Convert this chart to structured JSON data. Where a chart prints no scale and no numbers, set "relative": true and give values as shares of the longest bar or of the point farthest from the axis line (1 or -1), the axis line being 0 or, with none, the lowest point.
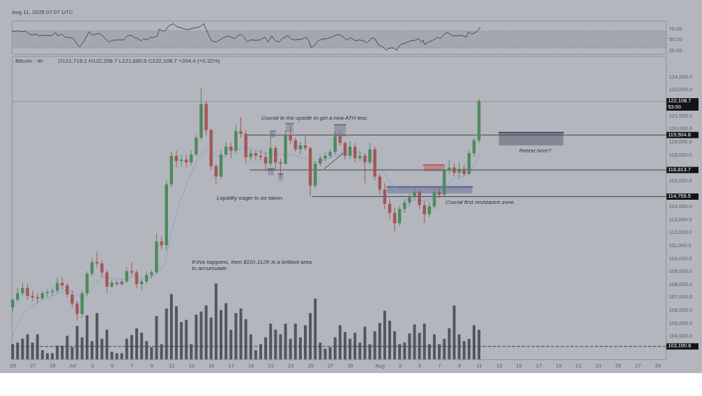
{
  "chart_data": [
    {
      "type": "line",
      "color": "#464951",
      "x": [
        "2025-06-25T00:00",
        "2025-06-25T11:00",
        "2025-06-25T23:00",
        "2025-06-26T07:00",
        "2025-06-26T15:00",
        "2025-06-27T00:00",
        "2025-06-27T08:00",
        "2025-06-27T17:00",
        "2025-06-28T01:00",
        "2025-06-28T12:00",
        "2025-06-28T23:00",
        "2025-06-29T08:00",
        "2025-06-29T13:00",
        "2025-06-29T22:00",
        "2025-06-30T06:00",
        "2025-06-30T14:00",
        "2025-07-01T02:00",
        "2025-07-01T13:00",
        "2025-07-01T18:00",
        "2025-07-02T03:00",
        "2025-07-02T17:00",
        "2025-07-03T01:00",
        "2025-07-03T10:00",
        "2025-07-03T18:00",
        "2025-07-04T02:00",
        "2025-07-04T11:00",
        "2025-07-04T17:00",
        "2025-07-05T01:00",
        "2025-07-05T18:00",
        "2025-07-06T05:00",
        "2025-07-06T13:00",
        "2025-07-06T22:00",
        "2025-07-07T06:00",
        "2025-07-07T14:00",
        "2025-07-07T23:00",
        "2025-07-08T04:00",
        "2025-07-08T13:00",
        "2025-07-08T21:00",
        "2025-07-09T06:00",
        "2025-07-09T14:00",
        "2025-07-09T18:00",
        "2025-07-10T01:00",
        "2025-07-10T09:00",
        "2025-07-10T18:00",
        "2025-07-11T05:00",
        "2025-07-11T13:00",
        "2025-07-12T01:00",
        "2025-07-12T12:00",
        "2025-07-12T20:00",
        "2025-07-13T05:00",
        "2025-07-13T16:00",
        "2025-07-14T00:00",
        "2025-07-14T06:00",
        "2025-07-14T12:00",
        "2025-07-14T17:00",
        "2025-07-15T01:00",
        "2025-07-15T12:00",
        "2025-07-15T21:00",
        "2025-07-16T05:00",
        "2025-07-16T14:00",
        "2025-07-17T01:00",
        "2025-07-17T09:00",
        "2025-07-17T23:00",
        "2025-07-18T08:00",
        "2025-07-18T16:00",
        "2025-07-19T00:00",
        "2025-07-19T12:00",
        "2025-07-19T23:00",
        "2025-07-20T10:00",
        "2025-07-20T18:00",
        "2025-07-21T03:00",
        "2025-07-21T11:00",
        "2025-07-21T20:00",
        "2025-07-22T04:00",
        "2025-07-22T18:00",
        "2025-07-23T02:00",
        "2025-07-23T11:00",
        "2025-07-24T04:00",
        "2025-07-24T15:00",
        "2025-07-24T20:00",
        "2025-07-25T02:00",
        "2025-07-25T10:00",
        "2025-07-25T19:00",
        "2025-07-26T06:00",
        "2025-07-26T17:00",
        "2025-07-27T04:00",
        "2025-07-27T18:00",
        "2025-07-28T05:00",
        "2025-07-28T17:00",
        "2025-07-29T01:00",
        "2025-07-29T12:00",
        "2025-07-29T23:00",
        "2025-07-30T08:00",
        "2025-07-30T17:00",
        "2025-07-31T04:00",
        "2025-07-31T12:00",
        "2025-07-31T20:00",
        "2025-08-01T07:00",
        "2025-08-01T16:00",
        "2025-08-02T00:00",
        "2025-08-02T09:00",
        "2025-08-02T17:00",
        "2025-08-03T02:00",
        "2025-08-03T15:00",
        "2025-08-04T03:00",
        "2025-08-04T14:00",
        "2025-08-04T22:00",
        "2025-08-05T04:00",
        "2025-08-05T09:00",
        "2025-08-05T12:00",
        "2025-08-05T23:00",
        "2025-08-06T10:00",
        "2025-08-06T19:00",
        "2025-08-07T03:00",
        "2025-08-07T12:00",
        "2025-08-07T20:00",
        "2025-08-08T07:00",
        "2025-08-08T18:00",
        "2025-08-09T06:00",
        "2025-08-09T17:00",
        "2025-08-09T23:00",
        "2025-08-10T07:00",
        "2025-08-10T15:00",
        "2025-08-10T21:00",
        "2025-08-11T03:00"
      ],
      "values": [
        68,
        70,
        68,
        70,
        63,
        60,
        63,
        58,
        60,
        59,
        59,
        66,
        58,
        63,
        56,
        55,
        53,
        38,
        33,
        44,
        68,
        60,
        63,
        64,
        58,
        49,
        44,
        48,
        49,
        49,
        58,
        60,
        55,
        52,
        47,
        52,
        49,
        55,
        55,
        58,
        74,
        71,
        70,
        82,
        87,
        80,
        77,
        73,
        74,
        77,
        78,
        82,
        87,
        74,
        63,
        47,
        44,
        49,
        53,
        58,
        55,
        52,
        63,
        55,
        44,
        49,
        48,
        49,
        55,
        44,
        58,
        47,
        44,
        52,
        59,
        51,
        49,
        51,
        55,
        47,
        31,
        36,
        47,
        51,
        52,
        55,
        62,
        58,
        48,
        55,
        47,
        49,
        47,
        42,
        53,
        52,
        38,
        33,
        25,
        30,
        30,
        25,
        38,
        42,
        47,
        48,
        52,
        44,
        48,
        38,
        44,
        49,
        55,
        52,
        63,
        66,
        59,
        58,
        60,
        55,
        68,
        63,
        66,
        71,
        79
      ],
      "xlim": [
        "2025-06-24T22:00",
        "2025-08-29T20:00"
      ],
      "ylim": [
        16,
        94
      ],
      "yticks": [
        {
          "value": 25,
          "label": "25.00"
        },
        {
          "value": 50,
          "label": "50.00"
        },
        {
          "value": 75,
          "label": "75.00"
        }
      ],
      "bands": [
        {
          "axis": "y",
          "from": 30,
          "to": 70,
          "color": "#a5a7ae"
        }
      ],
      "tick_labels": "y",
      "annotations": [
        "Aug 11, 2025 07:07 UTC"
      ]
    },
    {
      "type": "candlestick",
      "title": "Bitcoin · 4h",
      "subtitle": "O121,715.1 H122,298.7 L121,680.5 C122,108.7 +394.4 (+0.32%)",
      "x": [
        "2025-06-25T00:00",
        "2025-06-25T12:00",
        "2025-06-26T00:00",
        "2025-06-26T12:00",
        "2025-06-27T00:00",
        "2025-06-27T12:00",
        "2025-06-28T00:00",
        "2025-06-28T12:00",
        "2025-06-29T00:00",
        "2025-06-29T12:00",
        "2025-06-30T00:00",
        "2025-06-30T12:00",
        "2025-07-01T00:00",
        "2025-07-01T12:00",
        "2025-07-02T00:00",
        "2025-07-02T12:00",
        "2025-07-03T00:00",
        "2025-07-03T12:00",
        "2025-07-04T00:00",
        "2025-07-04T12:00",
        "2025-07-05T00:00",
        "2025-07-05T12:00",
        "2025-07-06T00:00",
        "2025-07-06T12:00",
        "2025-07-07T00:00",
        "2025-07-07T12:00",
        "2025-07-08T00:00",
        "2025-07-08T12:00",
        "2025-07-09T00:00",
        "2025-07-09T12:00",
        "2025-07-10T00:00",
        "2025-07-10T12:00",
        "2025-07-11T00:00",
        "2025-07-11T12:00",
        "2025-07-12T00:00",
        "2025-07-12T12:00",
        "2025-07-13T00:00",
        "2025-07-13T12:00",
        "2025-07-14T00:00",
        "2025-07-14T12:00",
        "2025-07-15T00:00",
        "2025-07-15T12:00",
        "2025-07-16T00:00",
        "2025-07-16T12:00",
        "2025-07-17T00:00",
        "2025-07-17T12:00",
        "2025-07-18T00:00",
        "2025-07-18T12:00",
        "2025-07-19T00:00",
        "2025-07-19T12:00",
        "2025-07-20T00:00",
        "2025-07-20T12:00",
        "2025-07-21T00:00",
        "2025-07-21T12:00",
        "2025-07-22T00:00",
        "2025-07-22T12:00",
        "2025-07-23T00:00",
        "2025-07-23T12:00",
        "2025-07-24T00:00",
        "2025-07-24T12:00",
        "2025-07-25T00:00",
        "2025-07-25T12:00",
        "2025-07-26T00:00",
        "2025-07-26T12:00",
        "2025-07-27T00:00",
        "2025-07-27T12:00",
        "2025-07-28T00:00",
        "2025-07-28T12:00",
        "2025-07-29T00:00",
        "2025-07-29T12:00",
        "2025-07-30T00:00",
        "2025-07-30T12:00",
        "2025-07-31T00:00",
        "2025-07-31T12:00",
        "2025-08-01T00:00",
        "2025-08-01T12:00",
        "2025-08-02T00:00",
        "2025-08-02T12:00",
        "2025-08-03T00:00",
        "2025-08-03T12:00",
        "2025-08-04T00:00",
        "2025-08-04T12:00",
        "2025-08-05T00:00",
        "2025-08-05T12:00",
        "2025-08-06T00:00",
        "2025-08-06T12:00",
        "2025-08-07T00:00",
        "2025-08-07T12:00",
        "2025-08-08T00:00",
        "2025-08-08T12:00",
        "2025-08-09T00:00",
        "2025-08-09T12:00",
        "2025-08-10T00:00",
        "2025-08-10T12:00",
        "2025-08-11T00:00"
      ],
      "ohlc": [
        [
          106200,
          106900,
          105900,
          106800
        ],
        [
          106800,
          107700,
          106600,
          107300
        ],
        [
          107300,
          108100,
          107100,
          107700
        ],
        [
          107700,
          108000,
          106800,
          107100
        ],
        [
          107100,
          107500,
          106700,
          107000
        ],
        [
          107000,
          107300,
          106500,
          106900
        ],
        [
          106900,
          107500,
          106800,
          107300
        ],
        [
          107300,
          107600,
          107000,
          107400
        ],
        [
          107400,
          107700,
          107100,
          107500
        ],
        [
          107500,
          108500,
          107300,
          108100
        ],
        [
          108100,
          108500,
          107600,
          107900
        ],
        [
          107900,
          108100,
          107000,
          107200
        ],
        [
          107200,
          107500,
          106200,
          106500
        ],
        [
          106500,
          106700,
          105200,
          105700
        ],
        [
          105700,
          107500,
          105400,
          107300
        ],
        [
          107300,
          109000,
          107100,
          108800
        ],
        [
          108800,
          110000,
          108600,
          109700
        ],
        [
          109700,
          110500,
          109300,
          109600
        ],
        [
          109600,
          109800,
          108500,
          108900
        ],
        [
          108900,
          109100,
          107300,
          107800
        ],
        [
          107800,
          108300,
          107700,
          108100
        ],
        [
          108100,
          108300,
          107900,
          108000
        ],
        [
          108000,
          108400,
          107900,
          108200
        ],
        [
          108200,
          109300,
          108100,
          109000
        ],
        [
          109000,
          109700,
          108700,
          108900
        ],
        [
          108900,
          109100,
          107700,
          108000
        ],
        [
          108000,
          108400,
          107500,
          108200
        ],
        [
          108200,
          109000,
          108000,
          108700
        ],
        [
          108700,
          109100,
          108400,
          108900
        ],
        [
          108900,
          111900,
          108800,
          111300
        ],
        [
          111300,
          111700,
          110700,
          111000
        ],
        [
          111000,
          116000,
          110600,
          115700
        ],
        [
          115700,
          118200,
          115500,
          117900
        ],
        [
          117900,
          118300,
          117000,
          117500
        ],
        [
          117500,
          118000,
          117100,
          117600
        ],
        [
          117600,
          118000,
          117000,
          117400
        ],
        [
          117400,
          118300,
          117200,
          118000
        ],
        [
          118000,
          119500,
          117900,
          119300
        ],
        [
          119300,
          123100,
          119100,
          121900
        ],
        [
          121900,
          122100,
          119500,
          119900
        ],
        [
          119900,
          120000,
          116800,
          117100
        ],
        [
          117100,
          117300,
          115700,
          116300
        ],
        [
          116300,
          118300,
          116100,
          118000
        ],
        [
          118000,
          119000,
          117800,
          118600
        ],
        [
          118600,
          118900,
          117700,
          118300
        ],
        [
          118300,
          120300,
          118100,
          119800
        ],
        [
          119800,
          120900,
          119300,
          119600
        ],
        [
          119600,
          119900,
          117300,
          117800
        ],
        [
          117800,
          118400,
          117500,
          118100
        ],
        [
          118100,
          118300,
          117600,
          117900
        ],
        [
          117900,
          118400,
          117500,
          117800
        ],
        [
          117800,
          118200,
          116700,
          117300
        ],
        [
          117300,
          119700,
          117100,
          118500
        ],
        [
          118500,
          118700,
          116900,
          117400
        ],
        [
          117400,
          117700,
          116300,
          117300
        ],
        [
          117300,
          119900,
          117200,
          119500
        ],
        [
          119500,
          120200,
          118800,
          119100
        ],
        [
          119100,
          119300,
          118200,
          118400
        ],
        [
          118400,
          119000,
          118000,
          118700
        ],
        [
          118700,
          119400,
          118300,
          118500
        ],
        [
          118500,
          118600,
          114800,
          115600
        ],
        [
          115600,
          117500,
          115400,
          117300
        ],
        [
          117300,
          117900,
          117100,
          117700
        ],
        [
          117700,
          118200,
          117500,
          117900
        ],
        [
          117900,
          118400,
          117700,
          118200
        ],
        [
          118200,
          119800,
          118000,
          119400
        ],
        [
          119400,
          119800,
          118700,
          118900
        ],
        [
          118900,
          119000,
          117600,
          117900
        ],
        [
          117900,
          119000,
          117700,
          118600
        ],
        [
          118600,
          118900,
          117400,
          117700
        ],
        [
          117700,
          118300,
          117500,
          117900
        ],
        [
          117900,
          118100,
          115800,
          117400
        ],
        [
          117400,
          118900,
          117200,
          118400
        ],
        [
          118400,
          118600,
          116000,
          116300
        ],
        [
          116300,
          116500,
          114900,
          115300
        ],
        [
          115300,
          115800,
          113800,
          114200
        ],
        [
          114200,
          114600,
          113000,
          113500
        ],
        [
          113500,
          113900,
          112000,
          112700
        ],
        [
          112700,
          114000,
          112500,
          113800
        ],
        [
          113800,
          114500,
          113500,
          114300
        ],
        [
          114300,
          115000,
          114000,
          114700
        ],
        [
          114700,
          115600,
          114500,
          115100
        ],
        [
          115100,
          115300,
          113800,
          114100
        ],
        [
          114100,
          114400,
          112700,
          113400
        ],
        [
          113400,
          114300,
          113200,
          114000
        ],
        [
          114000,
          115400,
          113800,
          115100
        ],
        [
          115100,
          115400,
          114600,
          114900
        ],
        [
          114900,
          117200,
          114800,
          116800
        ],
        [
          116800,
          117600,
          116500,
          117000
        ],
        [
          117000,
          117300,
          116300,
          116600
        ],
        [
          116600,
          117400,
          116200,
          116900
        ],
        [
          116900,
          117200,
          116300,
          116500
        ],
        [
          116500,
          118300,
          116400,
          118100
        ],
        [
          118100,
          119300,
          117800,
          119100
        ],
        [
          119100,
          122300,
          118900,
          122108.7
        ]
      ],
      "colors": [
        "#4f8a5c",
        "#4f8a5c",
        "#4f8a5c",
        "#a35657",
        "#a35657",
        "#a35657",
        "#4f8a5c",
        "#4f8a5c",
        "#4f8a5c",
        "#4f8a5c",
        "#a35657",
        "#a35657",
        "#a35657",
        "#a35657",
        "#4f8a5c",
        "#4f8a5c",
        "#4f8a5c",
        "#a35657",
        "#a35657",
        "#a35657",
        "#4f8a5c",
        "#a35657",
        "#4f8a5c",
        "#4f8a5c",
        "#a35657",
        "#a35657",
        "#4f8a5c",
        "#4f8a5c",
        "#4f8a5c",
        "#4f8a5c",
        "#a35657",
        "#4f8a5c",
        "#4f8a5c",
        "#a35657",
        "#4f8a5c",
        "#a35657",
        "#4f8a5c",
        "#4f8a5c",
        "#4f8a5c",
        "#a35657",
        "#a35657",
        "#a35657",
        "#4f8a5c",
        "#4f8a5c",
        "#a35657",
        "#4f8a5c",
        "#a35657",
        "#a35657",
        "#4f8a5c",
        "#a35657",
        "#a35657",
        "#a35657",
        "#4f8a5c",
        "#a35657",
        "#a35657",
        "#4f8a5c",
        "#a35657",
        "#a35657",
        "#4f8a5c",
        "#a35657",
        "#a35657",
        "#4f8a5c",
        "#4f8a5c",
        "#4f8a5c",
        "#4f8a5c",
        "#4f8a5c",
        "#a35657",
        "#a35657",
        "#4f8a5c",
        "#a35657",
        "#4f8a5c",
        "#a35657",
        "#4f8a5c",
        "#a35657",
        "#a35657",
        "#a35657",
        "#a35657",
        "#a35657",
        "#4f8a5c",
        "#4f8a5c",
        "#4f8a5c",
        "#4f8a5c",
        "#a35657",
        "#a35657",
        "#4f8a5c",
        "#4f8a5c",
        "#a35657",
        "#4f8a5c",
        "#4f8a5c",
        "#a35657",
        "#4f8a5c",
        "#a35657",
        "#4f8a5c",
        "#4f8a5c",
        "#4f8a5c"
      ],
      "series": [
        {
          "type": "line",
          "x": [
            "2025-08-01T18:00",
            "2025-08-10T08:00"
          ],
          "values": [
            115500,
            115500
          ],
          "lower": [
            115000,
            115000
          ],
          "upper": [
            115500,
            115500
          ],
          "color": "#5b6392"
        },
        {
          "type": "line",
          "x": [
            "2025-08-05T10:00",
            "2025-08-07T10:00"
          ],
          "values": [
            117200,
            117200
          ],
          "lower": [
            116700,
            116700
          ],
          "upper": [
            117200,
            117200
          ],
          "color": "#bf5959"
        },
        {
          "type": "line",
          "x": [
            "2025-08-13T00:00",
            "2025-08-19T12:00"
          ],
          "values": [
            119700,
            119700
          ],
          "lower": [
            118700,
            118700
          ],
          "upper": [
            119700,
            119700
          ],
          "color": "#4b4e63"
        },
        {
          "type": "line",
          "x": [
            "2025-07-21T00:00",
            "2025-07-21T11:00"
          ],
          "values": [
            119800,
            119800
          ],
          "lower": [
            119300,
            119300
          ],
          "upper": [
            119800,
            119800
          ],
          "color": "#70748a"
        },
        {
          "type": "line",
          "x": [
            "2025-07-20T18:00",
            "2025-07-21T08:00"
          ],
          "values": [
            116900,
            116900
          ],
          "lower": [
            116400,
            116400
          ],
          "upper": [
            116900,
            116900
          ],
          "color": "#6c7087"
        },
        {
          "type": "line",
          "x": [
            "2025-07-21T19:00",
            "2025-07-22T06:00"
          ],
          "values": [
            116500,
            116500
          ],
          "lower": [
            116000,
            116000
          ],
          "upper": [
            116500,
            116500
          ],
          "color": "#6a6f9a"
        },
        {
          "type": "line",
          "x": [
            "2025-07-22T13:00",
            "2025-07-23T07:00"
          ],
          "values": [
            120400,
            120400
          ],
          "lower": [
            119700,
            119700
          ],
          "upper": [
            120400,
            120400
          ],
          "color": "#74788d"
        },
        {
          "type": "line",
          "x": [
            "2025-07-27T10:00",
            "2025-07-28T14:00"
          ],
          "values": [
            120300,
            120300
          ],
          "lower": [
            119400,
            119400
          ],
          "upper": [
            120300,
            120300
          ],
          "color": "#6e7288"
        },
        {
          "type": "line",
          "color": "#8b9fdc",
          "x": [
            "2025-06-25T00:00",
            "2025-06-25T23:00",
            "2025-06-26T21:00",
            "2025-06-27T19:00",
            "2025-06-28T18:00",
            "2025-06-29T16:00",
            "2025-06-30T14:00",
            "2025-07-01T07:00",
            "2025-07-02T03:00",
            "2025-07-02T17:00",
            "2025-07-03T10:00",
            "2025-07-04T08:00",
            "2025-07-05T06:00",
            "2025-07-06T10:00",
            "2025-07-07T09:00",
            "2025-07-08T07:00",
            "2025-07-09T11:00",
            "2025-07-10T10:00",
            "2025-07-10T21:00",
            "2025-07-11T19:00",
            "2025-07-12T18:00",
            "2025-07-13T16:00",
            "2025-07-14T14:00",
            "2025-07-15T04:00",
            "2025-07-16T00:00",
            "2025-07-16T22:00",
            "2025-07-18T07:00",
            "2025-07-20T00:00",
            "2025-07-21T19:00",
            "2025-07-23T00:00",
            "2025-07-24T14:00",
            "2025-07-25T10:00",
            "2025-07-26T12:00",
            "2025-07-27T19:00",
            "2025-07-28T19:00",
            "2025-07-30T05:00",
            "2025-07-31T14:00",
            "2025-08-01T12:00",
            "2025-08-02T12:00",
            "2025-08-03T14:00",
            "2025-08-04T19:00",
            "2025-08-06T00:00",
            "2025-08-07T05:00",
            "2025-08-08T07:00",
            "2025-08-09T12:00",
            "2025-08-10T10:00",
            "2025-08-11T02:00"
          ],
          "values": [
            104000,
            105600,
            106300,
            106700,
            107000,
            107300,
            107600,
            107300,
            106800,
            107400,
            108100,
            108600,
            108400,
            108400,
            108700,
            108400,
            108700,
            109700,
            111700,
            114200,
            116100,
            117700,
            118500,
            118200,
            117700,
            118100,
            118600,
            118200,
            118000,
            118000,
            117700,
            117400,
            117600,
            118000,
            118300,
            118100,
            117400,
            116500,
            115400,
            114500,
            114400,
            114500,
            115100,
            116100,
            116300,
            117000,
            118100
          ]
        },
        {
          "type": "line",
          "color": "#3d4047",
          "x": [
            "2025-07-18T10:00",
            "2025-08-29T20:00"
          ],
          "values": [
            119504.8,
            119504.8
          ],
          "value_labels": [
            null,
            "119,504.8"
          ]
        },
        {
          "type": "line",
          "color": "#3d4047",
          "x": [
            "2025-07-18T22:00",
            "2025-08-29T20:00"
          ],
          "values": [
            116813.7,
            116813.7
          ],
          "value_labels": [
            null,
            "116,813.7"
          ]
        },
        {
          "type": "line",
          "color": "#3d4047",
          "x": [
            "2025-07-25T05:00",
            "2025-08-29T20:00"
          ],
          "values": [
            114755.5,
            114755.5
          ],
          "value_labels": [
            null,
            "114,755.5"
          ]
        },
        {
          "type": "line",
          "color": "#3d4047",
          "x": [
            "2025-07-26T10:00",
            "2025-07-28T07:00"
          ],
          "values": [
            116900,
            118100
          ]
        }
      ],
      "ref_lines": [
        {
          "axis": "y",
          "value": 122108.7,
          "label": "122,108.7\n53:00",
          "line_style": "dotted",
          "color": "#7e8189"
        },
        {
          "axis": "y",
          "value": 103190.6,
          "label": "103,190.6",
          "line_style": "dashed",
          "color": "#3d4047"
        }
      ],
      "annotations": [
        "Crucial to the upside to get a new ATH test.",
        "Liquidity eager to be taken.",
        "Crucial first resistance zone.",
        "If this happens, then $110-112K is a brilliant area\nto accumulate.",
        "Retest here?"
      ],
      "xlim": [
        "2025-06-24T22:00",
        "2025-08-29T20:00"
      ],
      "ylim": [
        102200,
        125600
      ],
      "xticks": [
        {
          "value": "2025-06-25",
          "label": "25"
        },
        {
          "value": "2025-06-27",
          "label": "27"
        },
        {
          "value": "2025-06-29",
          "label": "29"
        },
        {
          "value": "2025-07-01",
          "label": "Jul"
        },
        {
          "value": "2025-07-03",
          "label": "3"
        },
        {
          "value": "2025-07-05",
          "label": "5"
        },
        {
          "value": "2025-07-07",
          "label": "7"
        },
        {
          "value": "2025-07-09",
          "label": "9"
        },
        {
          "value": "2025-07-11",
          "label": "11"
        },
        {
          "value": "2025-07-13",
          "label": "13"
        },
        {
          "value": "2025-07-15",
          "label": "15"
        },
        {
          "value": "2025-07-17",
          "label": "17"
        },
        {
          "value": "2025-07-19",
          "label": "19"
        },
        {
          "value": "2025-07-21",
          "label": "21"
        },
        {
          "value": "2025-07-23",
          "label": "23"
        },
        {
          "value": "2025-07-25",
          "label": "25"
        },
        {
          "value": "2025-07-27",
          "label": "27"
        },
        {
          "value": "2025-07-29",
          "label": "29"
        },
        {
          "value": "2025-08-01",
          "label": "Aug"
        },
        {
          "value": "2025-08-03",
          "label": "3"
        },
        {
          "value": "2025-08-05",
          "label": "5"
        },
        {
          "value": "2025-08-07",
          "label": "7"
        },
        {
          "value": "2025-08-09",
          "label": "9"
        },
        {
          "value": "2025-08-11",
          "label": "11"
        },
        {
          "value": "2025-08-13",
          "label": "13"
        },
        {
          "value": "2025-08-15",
          "label": "15"
        },
        {
          "value": "2025-08-17",
          "label": "17"
        },
        {
          "value": "2025-08-19",
          "label": "19"
        },
        {
          "value": "2025-08-21",
          "label": "21"
        },
        {
          "value": "2025-08-23",
          "label": "23"
        },
        {
          "value": "2025-08-25",
          "label": "25"
        },
        {
          "value": "2025-08-27",
          "label": "27"
        },
        {
          "value": "2025-08-29",
          "label": "29"
        }
      ],
      "yticks": [
        {
          "value": 104000,
          "label": "104,000.0"
        },
        {
          "value": 105000,
          "label": "105,000.0"
        },
        {
          "value": 106000,
          "label": "106,000.0"
        },
        {
          "value": 107000,
          "label": "107,000.0"
        },
        {
          "value": 108000,
          "label": "108,000.0"
        },
        {
          "value": 109000,
          "label": "109,000.0"
        },
        {
          "value": 110000,
          "label": "110,000.0"
        },
        {
          "value": 111000,
          "label": "111,000.0"
        },
        {
          "value": 112000,
          "label": "112,000.0"
        },
        {
          "value": 113000,
          "label": "113,000.0"
        },
        {
          "value": 114000,
          "label": "114,000.0"
        },
        {
          "value": 116000,
          "label": "116,000.0"
        },
        {
          "value": 118000,
          "label": "118,000.0"
        },
        {
          "value": 119000,
          "label": "119,000.0"
        },
        {
          "value": 120000,
          "label": "120,000.0"
        },
        {
          "value": 121000,
          "label": "121,000.0"
        },
        {
          "value": 123000,
          "label": "123,000.0"
        },
        {
          "value": 124000,
          "label": "124,000.0"
        }
      ]
    },
    {
      "type": "bar",
      "relative": true,
      "color": "#53565e",
      "tick_labels": false,
      "xlim": [
        "2025-06-24T22:00",
        "2025-08-29T20:00"
      ],
      "x": [
        "2025-06-25T00:00",
        "2025-06-25T12:00",
        "2025-06-26T00:00",
        "2025-06-26T12:00",
        "2025-06-27T00:00",
        "2025-06-27T12:00",
        "2025-06-28T00:00",
        "2025-06-28T12:00",
        "2025-06-29T00:00",
        "2025-06-29T12:00",
        "2025-06-30T00:00",
        "2025-06-30T12:00",
        "2025-07-01T00:00",
        "2025-07-01T12:00",
        "2025-07-02T00:00",
        "2025-07-02T12:00",
        "2025-07-03T00:00",
        "2025-07-03T12:00",
        "2025-07-04T00:00",
        "2025-07-04T12:00",
        "2025-07-05T00:00",
        "2025-07-05T12:00",
        "2025-07-06T00:00",
        "2025-07-06T12:00",
        "2025-07-07T00:00",
        "2025-07-07T12:00",
        "2025-07-08T00:00",
        "2025-07-08T12:00",
        "2025-07-09T00:00",
        "2025-07-09T12:00",
        "2025-07-10T00:00",
        "2025-07-10T12:00",
        "2025-07-11T00:00",
        "2025-07-11T12:00",
        "2025-07-12T00:00",
        "2025-07-12T12:00",
        "2025-07-13T00:00",
        "2025-07-13T12:00",
        "2025-07-14T00:00",
        "2025-07-14T12:00",
        "2025-07-15T00:00",
        "2025-07-15T12:00",
        "2025-07-16T00:00",
        "2025-07-16T12:00",
        "2025-07-17T00:00",
        "2025-07-17T12:00",
        "2025-07-18T00:00",
        "2025-07-18T12:00",
        "2025-07-19T00:00",
        "2025-07-19T12:00",
        "2025-07-20T00:00",
        "2025-07-20T12:00",
        "2025-07-21T00:00",
        "2025-07-21T12:00",
        "2025-07-22T00:00",
        "2025-07-22T12:00",
        "2025-07-23T00:00",
        "2025-07-23T12:00",
        "2025-07-24T00:00",
        "2025-07-24T12:00",
        "2025-07-25T00:00",
        "2025-07-25T12:00",
        "2025-07-26T00:00",
        "2025-07-26T12:00",
        "2025-07-27T00:00",
        "2025-07-27T12:00",
        "2025-07-28T00:00",
        "2025-07-28T12:00",
        "2025-07-29T00:00",
        "2025-07-29T12:00",
        "2025-07-30T00:00",
        "2025-07-30T12:00",
        "2025-07-31T00:00",
        "2025-07-31T12:00",
        "2025-08-01T00:00",
        "2025-08-01T12:00",
        "2025-08-02T00:00",
        "2025-08-02T12:00",
        "2025-08-03T00:00",
        "2025-08-03T12:00",
        "2025-08-04T00:00",
        "2025-08-04T12:00",
        "2025-08-05T00:00",
        "2025-08-05T12:00",
        "2025-08-06T00:00",
        "2025-08-06T12:00",
        "2025-08-07T00:00",
        "2025-08-07T12:00",
        "2025-08-08T00:00",
        "2025-08-08T12:00",
        "2025-08-09T00:00",
        "2025-08-09T12:00",
        "2025-08-10T00:00",
        "2025-08-10T12:00",
        "2025-08-11T00:00"
      ],
      "values": [
        0.2,
        0.22,
        0.27,
        0.33,
        0.22,
        0.33,
        0.12,
        0.08,
        0.08,
        0.18,
        0.18,
        0.31,
        0.16,
        0.44,
        0.29,
        0.58,
        0.24,
        0.61,
        0.27,
        0.39,
        0.1,
        0.08,
        0.08,
        0.27,
        0.32,
        0.41,
        0.35,
        0.24,
        0.16,
        0.57,
        0.2,
        0.67,
        0.86,
        0.7,
        0.49,
        0.52,
        0.2,
        0.59,
        0.63,
        0.71,
        0.55,
        1,
        0.65,
        0.74,
        0.39,
        0.61,
        0.67,
        0.53,
        0.33,
        0.12,
        0.2,
        0.29,
        0.47,
        0.39,
        0.33,
        0.47,
        0.27,
        0.47,
        0.29,
        0.45,
        0.61,
        0.8,
        0.22,
        0.14,
        0.16,
        0.29,
        0.45,
        0.36,
        0.27,
        0.35,
        0.22,
        0.43,
        0.2,
        0.37,
        0.48,
        0.64,
        0.51,
        0.37,
        0.2,
        0.22,
        0.34,
        0.46,
        0.35,
        0.47,
        0.2,
        0.33,
        0.2,
        0.27,
        0.41,
        0.71,
        0.33,
        0.24,
        0.27,
        0.45,
        0.39
      ]
    }
  ]
}
